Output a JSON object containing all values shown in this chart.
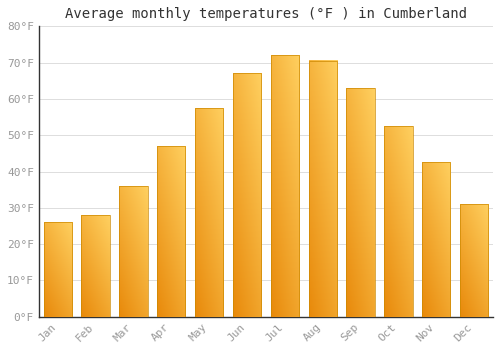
{
  "title": "Average monthly temperatures (°F ) in Cumberland",
  "months": [
    "Jan",
    "Feb",
    "Mar",
    "Apr",
    "May",
    "Jun",
    "Jul",
    "Aug",
    "Sep",
    "Oct",
    "Nov",
    "Dec"
  ],
  "values": [
    26,
    28,
    36,
    47,
    57.5,
    67,
    72,
    70.5,
    63,
    52.5,
    42.5,
    31
  ],
  "bar_color_dark": "#E8890A",
  "bar_color_light": "#FFD060",
  "bar_color_mid": "#FFAA15",
  "bar_edge_color": "#CC8800",
  "background_color": "#FFFFFF",
  "grid_color": "#DDDDDD",
  "ylim": [
    0,
    80
  ],
  "yticks": [
    0,
    10,
    20,
    30,
    40,
    50,
    60,
    70,
    80
  ],
  "title_fontsize": 10,
  "tick_fontsize": 8,
  "tick_label_color": "#999999",
  "title_color": "#333333"
}
